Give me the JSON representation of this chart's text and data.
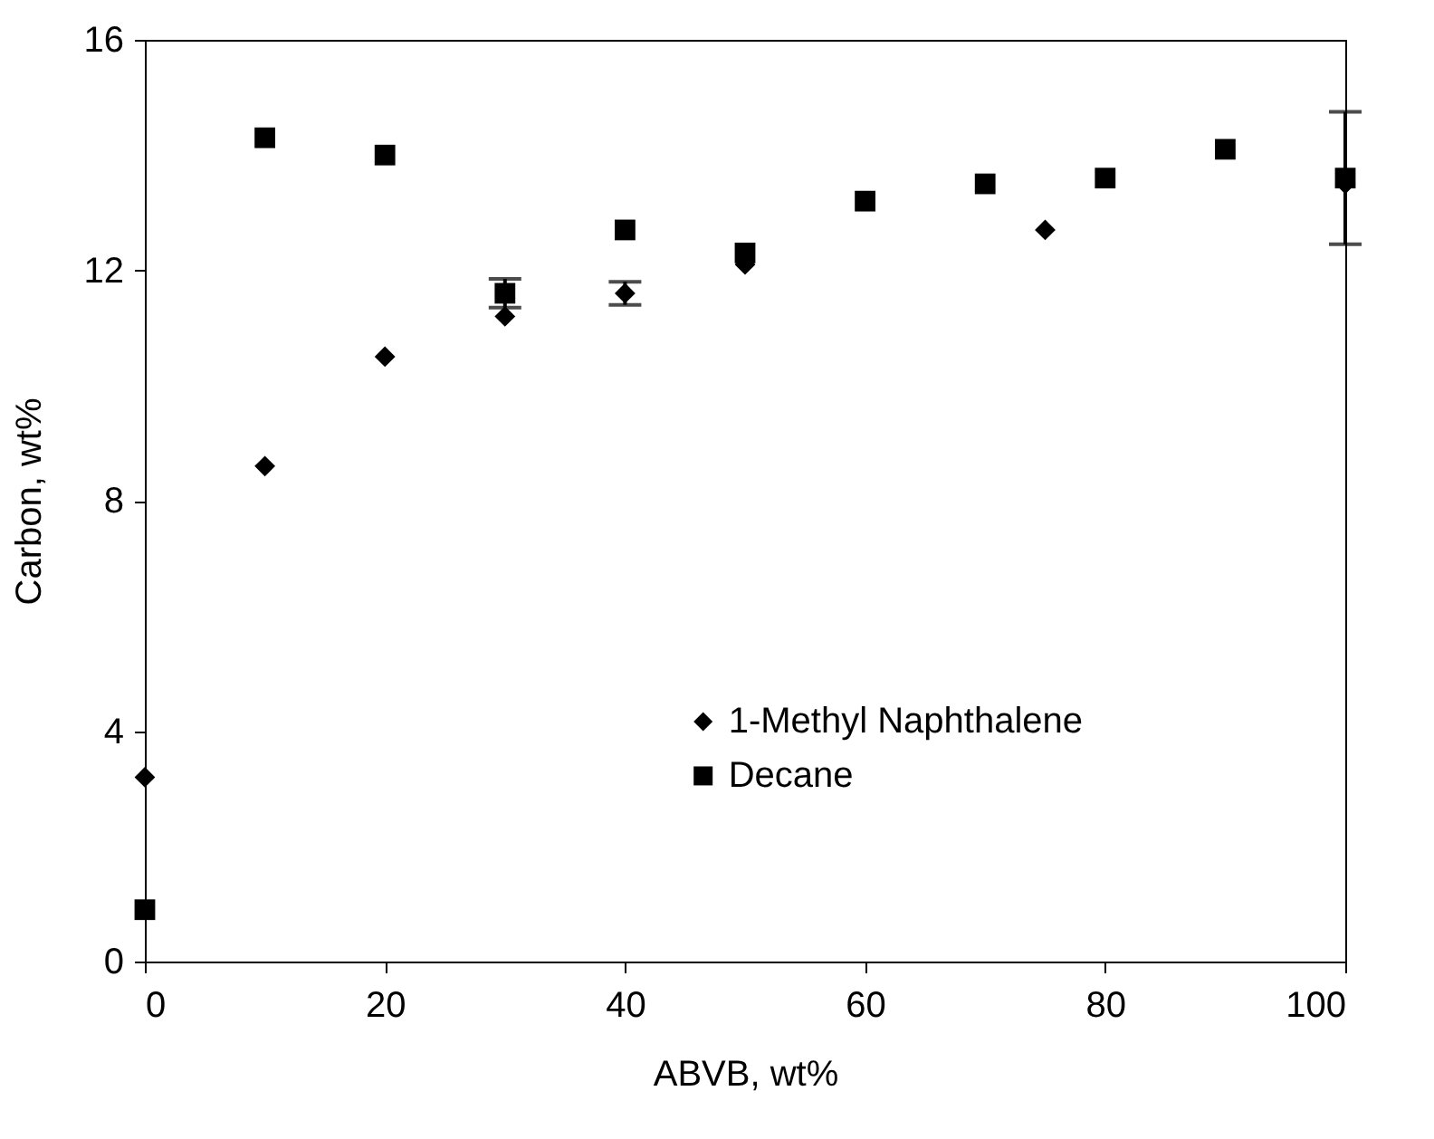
{
  "chart_data": {
    "type": "scatter",
    "xlabel": "ABVB, wt%",
    "ylabel": "Carbon, wt%",
    "xlim": [
      0,
      100
    ],
    "xticks": [
      0,
      20,
      40,
      60,
      80,
      100
    ],
    "ylim": [
      0,
      16
    ],
    "yticks": [
      0,
      4,
      8,
      12,
      16
    ],
    "grid": false,
    "legend": "bottom",
    "series": [
      {
        "name": "1-Methyl Naphthalene",
        "color": "#000000",
        "marker": "diamond",
        "x": [
          0,
          10,
          20,
          30,
          40,
          50,
          75,
          100
        ],
        "values": [
          3.2,
          8.6,
          10.5,
          11.2,
          11.6,
          12.1,
          12.7,
          13.5
        ],
        "errors": [
          null,
          null,
          null,
          null,
          0.2,
          null,
          null,
          null
        ]
      },
      {
        "name": "Decane",
        "color": "#000000",
        "marker": "square",
        "x": [
          0,
          10,
          20,
          30,
          40,
          50,
          60,
          70,
          80,
          90,
          100
        ],
        "values": [
          0.9,
          14.3,
          14.0,
          11.6,
          12.7,
          12.3,
          13.2,
          13.5,
          13.6,
          14.1,
          13.6
        ],
        "errors": [
          null,
          null,
          null,
          0.25,
          null,
          null,
          null,
          null,
          null,
          null,
          1.15
        ]
      }
    ]
  }
}
